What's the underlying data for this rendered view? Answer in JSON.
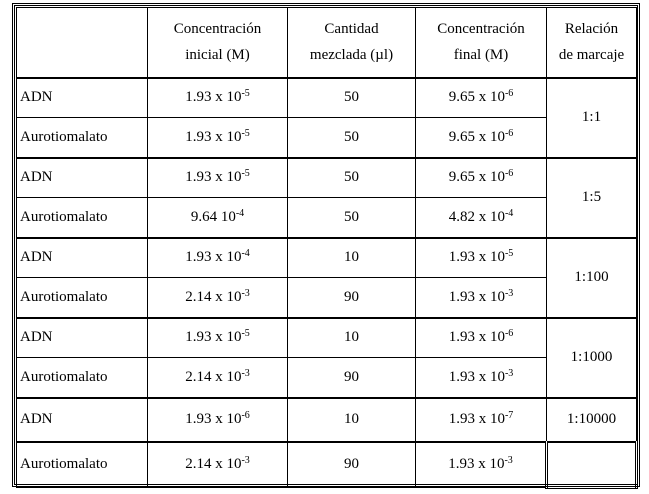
{
  "table": {
    "headers": {
      "compound": "",
      "initial_concentration": [
        "Concentración",
        "inicial (M)"
      ],
      "mixed_amount": [
        "Cantidad",
        "mezclada (µl)"
      ],
      "final_concentration": [
        "Concentración",
        "final (M)"
      ],
      "labeling_ratio": [
        "Relación",
        "de marcaje"
      ]
    },
    "rows": [
      {
        "compound": "ADN",
        "initial_base": "1.93 x 10",
        "initial_exp": "-5",
        "mixed": "50",
        "final_base": "9.65 x 10",
        "final_exp": "-6"
      },
      {
        "compound": "Aurotiomalato",
        "initial_base": "1.93 x 10",
        "initial_exp": "-5",
        "mixed": "50",
        "final_base": "9.65 x 10",
        "final_exp": "-6"
      },
      {
        "compound": "ADN",
        "initial_base": "1.93 x 10",
        "initial_exp": "-5",
        "mixed": "50",
        "final_base": "9.65 x 10",
        "final_exp": "-6"
      },
      {
        "compound": "Aurotiomalato",
        "initial_base": "9.64 10",
        "initial_exp": "-4",
        "mixed": "50",
        "final_base": "4.82 x 10",
        "final_exp": "-4"
      },
      {
        "compound": "ADN",
        "initial_base": "1.93 x 10",
        "initial_exp": "-4",
        "mixed": "10",
        "final_base": "1.93 x 10",
        "final_exp": "-5"
      },
      {
        "compound": "Aurotiomalato",
        "initial_base": "2.14 x 10",
        "initial_exp": "-3",
        "mixed": "90",
        "final_base": "1.93 x 10",
        "final_exp": "-3"
      },
      {
        "compound": "ADN",
        "initial_base": "1.93 x 10",
        "initial_exp": "-5",
        "mixed": "10",
        "final_base": "1.93 x 10",
        "final_exp": "-6"
      },
      {
        "compound": "Aurotiomalato",
        "initial_base": "2.14 x 10",
        "initial_exp": "-3",
        "mixed": "90",
        "final_base": "1.93 x 10",
        "final_exp": "-3"
      },
      {
        "compound": "ADN",
        "initial_base": "1.93 x 10",
        "initial_exp": "-6",
        "mixed": "10",
        "final_base": "1.93 x 10",
        "final_exp": "-7"
      },
      {
        "compound": "Aurotiomalato",
        "initial_base": "2.14 x 10",
        "initial_exp": "-3",
        "mixed": "90",
        "final_base": "1.93 x 10",
        "final_exp": "-3"
      }
    ],
    "ratios": [
      "1:1",
      "1:5",
      "1:100",
      "1:1000",
      "1:10000",
      ""
    ]
  }
}
